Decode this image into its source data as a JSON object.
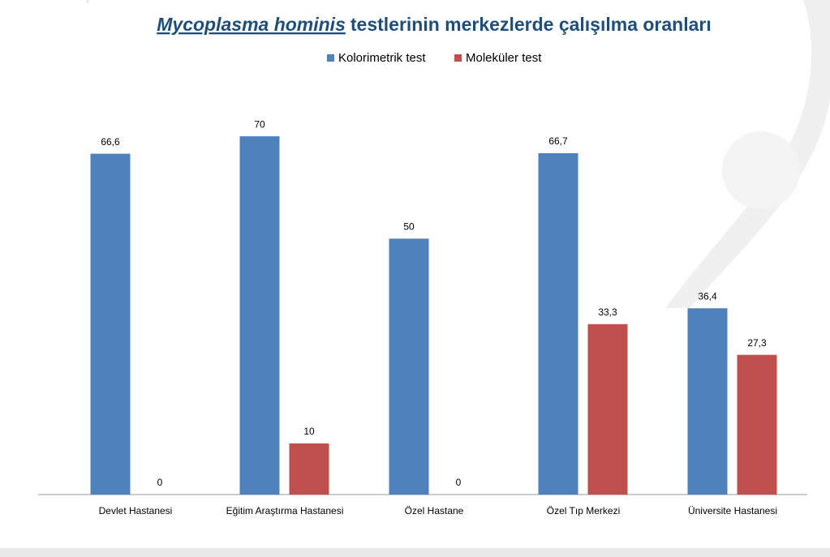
{
  "chart_data": {
    "type": "bar",
    "title": [
      "Mycoplasma hominis",
      "testlerinin merkezlerde çalışılma oranları"
    ],
    "categories": [
      "Devlet Hastanesi",
      "Eğitim Araştırma Hastanesi",
      "Özel Hastane",
      "Özel Tıp Merkezi",
      "Üniversite Hastanesi"
    ],
    "series": [
      {
        "name": "Kolorimetrik test",
        "color": "#4f81bd",
        "values": [
          66.6,
          70,
          50,
          66.7,
          36.4
        ],
        "value_labels": [
          "66,6",
          "70",
          "50",
          "66,7",
          "36,4"
        ]
      },
      {
        "name": "Moleküler test",
        "color": "#c0504d",
        "values": [
          0,
          10,
          0,
          33.3,
          27.3
        ],
        "value_labels": [
          "0",
          "10",
          "0",
          "33,3",
          "27,3"
        ]
      }
    ],
    "ylim": [
      0,
      80
    ],
    "legend": "top"
  }
}
